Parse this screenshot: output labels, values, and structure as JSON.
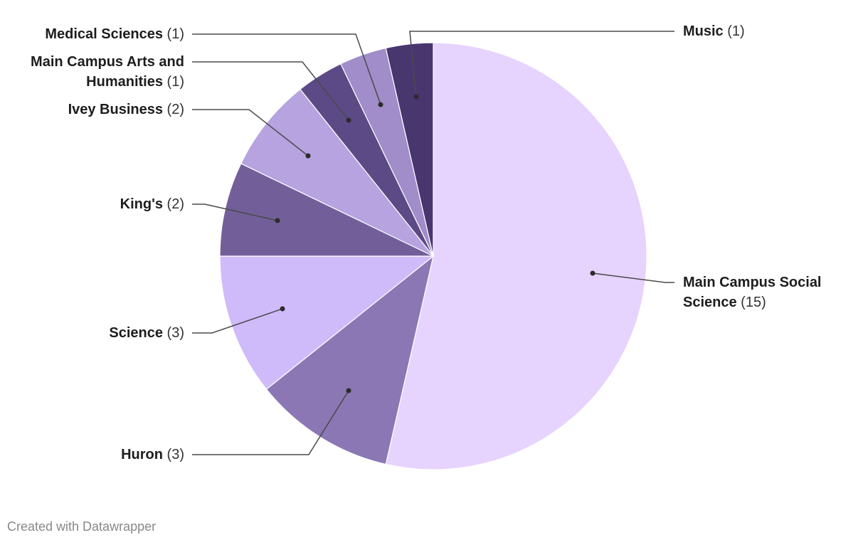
{
  "chart_data": {
    "type": "pie",
    "title": "",
    "start_angle": "top, clockwise",
    "slices": [
      {
        "label": "Main Campus Social Science",
        "value": 15,
        "color": "#e6d3fe"
      },
      {
        "label": "Huron",
        "value": 3,
        "color": "#8a77b3"
      },
      {
        "label": "Science",
        "value": 3,
        "color": "#cfbbfa"
      },
      {
        "label": "King's",
        "value": 2,
        "color": "#725f99"
      },
      {
        "label": "Ivey Business",
        "value": 2,
        "color": "#b6a3e0"
      },
      {
        "label": "Main Campus Arts and Humanities",
        "value": 1,
        "color": "#5b4a85"
      },
      {
        "label": "Medical Sciences",
        "value": 1,
        "color": "#a18dca"
      },
      {
        "label": "Music",
        "value": 1,
        "color": "#48366f"
      }
    ],
    "slice_labels": [
      {
        "name": "Main Campus Social Science",
        "count": "(15)"
      },
      {
        "name": "Huron",
        "count": "(3)"
      },
      {
        "name": "Science",
        "count": "(3)"
      },
      {
        "name": "King's",
        "count": "(2)"
      },
      {
        "name": "Ivey Business",
        "count": "(2)"
      },
      {
        "name": "Main Campus Arts and Humanities",
        "count": "(1)"
      },
      {
        "name": "Medical Sciences",
        "count": "(1)"
      },
      {
        "name": "Music",
        "count": "(1)"
      }
    ]
  },
  "footer": "Created with Datawrapper"
}
